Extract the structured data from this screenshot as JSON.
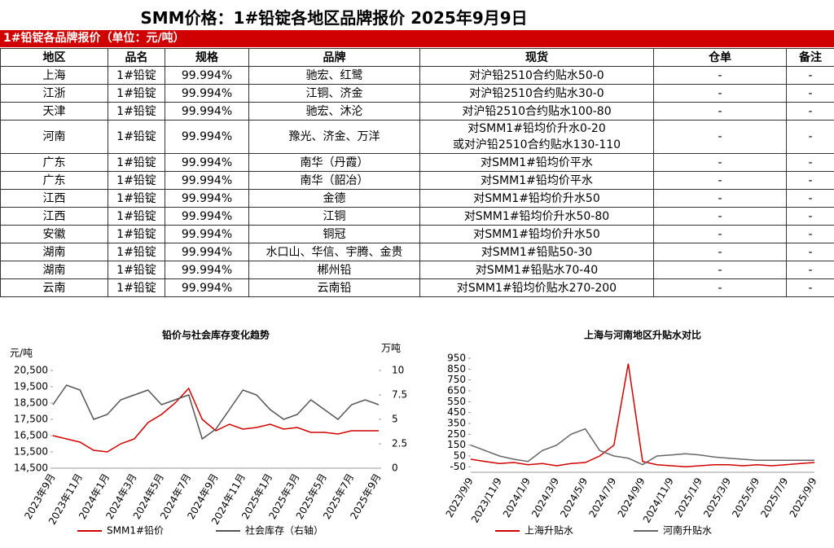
{
  "header": {
    "title": "SMM价格：1#铅锭各地区品牌报价 2025年9月9日"
  },
  "table": {
    "caption": "1#铅锭各品牌报价（单位：元/吨）",
    "columns": [
      "地区",
      "品名",
      "规格",
      "品牌",
      "现货",
      "仓单",
      "备注"
    ],
    "rows": [
      [
        "上海",
        "1#铅锭",
        "99.994%",
        "驰宏、红鹭",
        "对沪铅2510合约贴水50-0",
        "-",
        "-"
      ],
      [
        "江浙",
        "1#铅锭",
        "99.994%",
        "江铜、济金",
        "对沪铅2510合约贴水30-0",
        "-",
        "-"
      ],
      [
        "天津",
        "1#铅锭",
        "99.994%",
        "驰宏、沐沦",
        "对沪铅2510合约贴水100-80",
        "-",
        "-"
      ],
      [
        "河南",
        "1#铅锭",
        "99.994%",
        "豫光、济金、万洋",
        [
          "对SMM1#铅均价升水0-20",
          "或对沪铅2510合约贴水130-110"
        ],
        "-",
        "-"
      ],
      [
        "广东",
        "1#铅锭",
        "99.994%",
        "南华（丹霞）",
        "对SMM1#铅均价平水",
        "-",
        "-"
      ],
      [
        "广东",
        "1#铅锭",
        "99.994%",
        "南华（韶冶）",
        "对SMM1#铅均价平水",
        "-",
        "-"
      ],
      [
        "江西",
        "1#铅锭",
        "99.994%",
        "金德",
        "对SMM1#铅均价升水50",
        "-",
        "-"
      ],
      [
        "江西",
        "1#铅锭",
        "99.994%",
        "江铜",
        "对SMM1#铅均价升水50-80",
        "-",
        "-"
      ],
      [
        "安徽",
        "1#铅锭",
        "99.994%",
        "铜冠",
        "对SMM1#铅均价升水50",
        "-",
        "-"
      ],
      [
        "湖南",
        "1#铅锭",
        "99.994%",
        "水口山、华信、宇腾、金贵",
        "对SMM1#铅贴50-30",
        "-",
        "-"
      ],
      [
        "湖南",
        "1#铅锭",
        "99.994%",
        "郴州铅",
        "对SMM1#铅贴水70-40",
        "-",
        "-"
      ],
      [
        "云南",
        "1#铅锭",
        "99.994%",
        "云南铅",
        "对SMM1#铅均价贴水270-200",
        "-",
        "-"
      ]
    ]
  },
  "chart_data": [
    {
      "type": "line",
      "title": "铅价与社会库存变化趋势",
      "y_label": "元/吨",
      "y2_label": "万吨",
      "categories": [
        "2023年9月",
        null,
        "2023年11月",
        null,
        "2024年1月",
        null,
        "2024年3月",
        null,
        "2024年5月",
        null,
        "2024年7月",
        null,
        "2024年9月",
        null,
        "2024年11月",
        null,
        "2025年1月",
        null,
        "2025年3月",
        null,
        "2025年5月",
        null,
        "2025年7月",
        null,
        "2025年9月"
      ],
      "series": [
        {
          "name": "SMM1#铅价",
          "color": "#d00000",
          "values": [
            16500,
            16300,
            16100,
            15600,
            15500,
            16000,
            16300,
            17300,
            17800,
            18500,
            19400,
            17500,
            16800,
            17200,
            16900,
            17000,
            17200,
            16900,
            17000,
            16700,
            16700,
            16600,
            16800,
            16800,
            16800
          ]
        },
        {
          "name": "社会库存（右轴）",
          "color": "#555555",
          "axis": "y2",
          "values": [
            6.5,
            8.5,
            8,
            5,
            5.5,
            7,
            7.5,
            8,
            6.5,
            7,
            7.5,
            3,
            4,
            6,
            8,
            7.5,
            6,
            5,
            5.5,
            7,
            6,
            5,
            6.5,
            7,
            6.5
          ]
        }
      ],
      "ylim": [
        14500,
        20500
      ],
      "yticks": [
        {
          "value": 14500,
          "label": "14,500"
        },
        {
          "value": 15500,
          "label": "15,500"
        },
        {
          "value": 16500,
          "label": "16,500"
        },
        {
          "value": 17500,
          "label": "17,500"
        },
        {
          "value": 18500,
          "label": "18,500"
        },
        {
          "value": 19500,
          "label": "19,500"
        },
        {
          "value": 20500,
          "label": "20,500"
        }
      ],
      "y2lim": [
        0,
        10
      ],
      "y2ticks": [
        0,
        2.5,
        5,
        7.5,
        10
      ]
    },
    {
      "type": "line",
      "title": "上海与河南地区升贴水对比",
      "categories": [
        "2023/9/9",
        null,
        "2023/11/9",
        null,
        "2024/1/9",
        null,
        "2024/3/9",
        null,
        "2024/5/9",
        null,
        "2024/7/9",
        null,
        "2024/9/9",
        null,
        "2024/11/9",
        null,
        "2025/1/9",
        null,
        "2025/3/9",
        null,
        "2025/5/9",
        null,
        "2025/7/9",
        null,
        "2025/9/9"
      ],
      "series": [
        {
          "name": "上海升贴水",
          "color": "#d00000",
          "values": [
            20,
            0,
            -20,
            -10,
            -30,
            -20,
            -40,
            -20,
            -10,
            50,
            150,
            900,
            0,
            -30,
            -40,
            -50,
            -40,
            -30,
            -30,
            -40,
            -30,
            -40,
            -30,
            -20,
            -10
          ]
        },
        {
          "name": "河南升贴水",
          "color": "#666666",
          "values": [
            150,
            100,
            50,
            20,
            0,
            100,
            150,
            250,
            300,
            100,
            50,
            30,
            -30,
            50,
            60,
            70,
            60,
            40,
            30,
            20,
            10,
            10,
            10,
            10,
            10
          ]
        }
      ],
      "ylim": [
        -100,
        950
      ],
      "yticks": [
        -50,
        50,
        150,
        250,
        350,
        450,
        550,
        650,
        750,
        850,
        950
      ]
    }
  ]
}
